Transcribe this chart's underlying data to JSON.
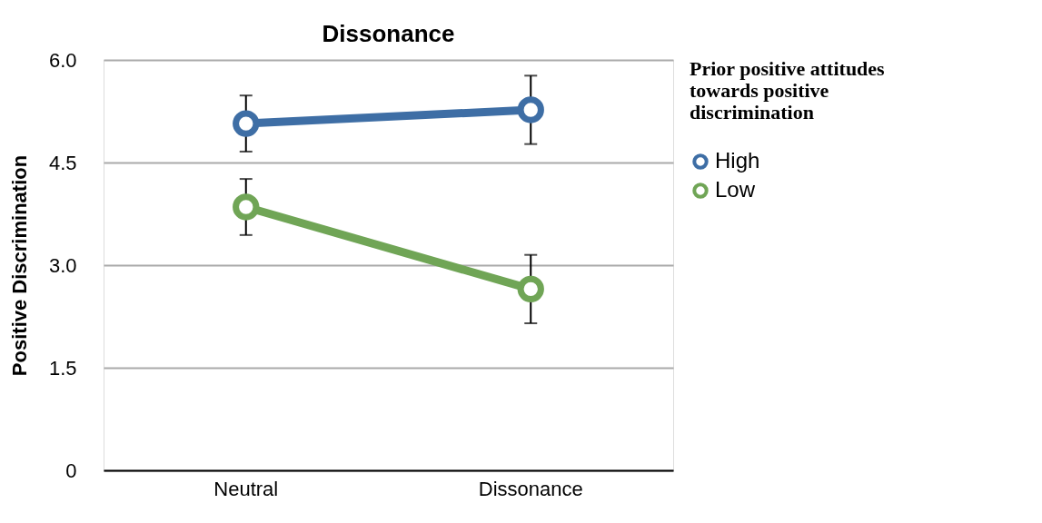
{
  "chart_data": {
    "type": "line",
    "title": "Dissonance",
    "ylabel": "Positive Discrimination",
    "legend_title": "Prior positive attitudes towards positive discrimination",
    "categories": [
      "Neutral",
      "Dissonance"
    ],
    "series": [
      {
        "name": "High",
        "color": "#3e6ea5",
        "values": [
          5.07,
          5.27
        ],
        "errors": [
          0.41,
          0.5
        ]
      },
      {
        "name": "Low",
        "color": "#70a556",
        "values": [
          3.85,
          2.65
        ],
        "errors": [
          0.41,
          0.5
        ]
      }
    ],
    "ylim": [
      0,
      6
    ],
    "yticks": [
      0,
      1.5,
      {
        "value": 3,
        "label": "3.0"
      },
      4.5,
      {
        "value": 6,
        "label": "6.0"
      }
    ],
    "grid": "y",
    "legend": "top right",
    "marker": "circle",
    "line_style": "solid"
  }
}
